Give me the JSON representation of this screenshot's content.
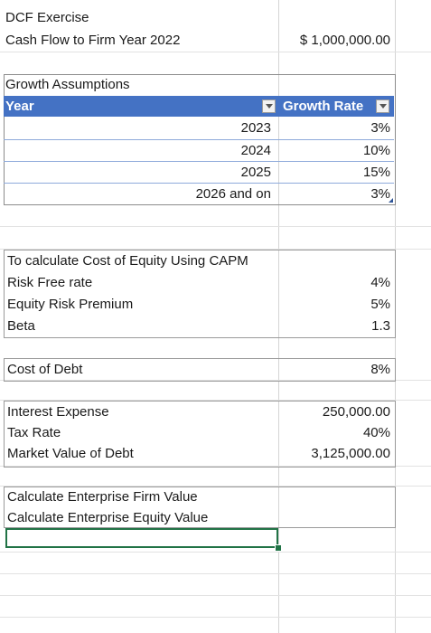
{
  "header": {
    "title": "DCF Exercise",
    "cashflow_label": "Cash Flow to Firm Year 2022",
    "cashflow_value": "$ 1,000,000.00"
  },
  "growth": {
    "section_label": "Growth Assumptions",
    "col_year": "Year",
    "col_rate": "Growth Rate",
    "rows": [
      {
        "year": "2023",
        "rate": "3%"
      },
      {
        "year": "2024",
        "rate": "10%"
      },
      {
        "year": "2025",
        "rate": "15%"
      },
      {
        "year": "2026 and on",
        "rate": "3%"
      }
    ]
  },
  "capm": {
    "title": "To calculate Cost of Equity Using CAPM",
    "risk_free_label": "Risk Free rate",
    "risk_free_value": "4%",
    "erp_label": "Equity Risk Premium",
    "erp_value": "5%",
    "beta_label": "Beta",
    "beta_value": "1.3"
  },
  "debt": {
    "cost_label": "Cost of Debt",
    "cost_value": "8%",
    "interest_label": "Interest Expense",
    "interest_value": "250,000.00",
    "tax_label": "Tax Rate",
    "tax_value": "40%",
    "mv_label": "Market Value of Debt",
    "mv_value": "3,125,000.00"
  },
  "calc": {
    "firm_label": "Calculate Enterprise Firm Value",
    "equity_label": "Calculate Enterprise Equity Value"
  },
  "colors": {
    "header_blue": "#4472c4",
    "selection_green": "#217346"
  }
}
